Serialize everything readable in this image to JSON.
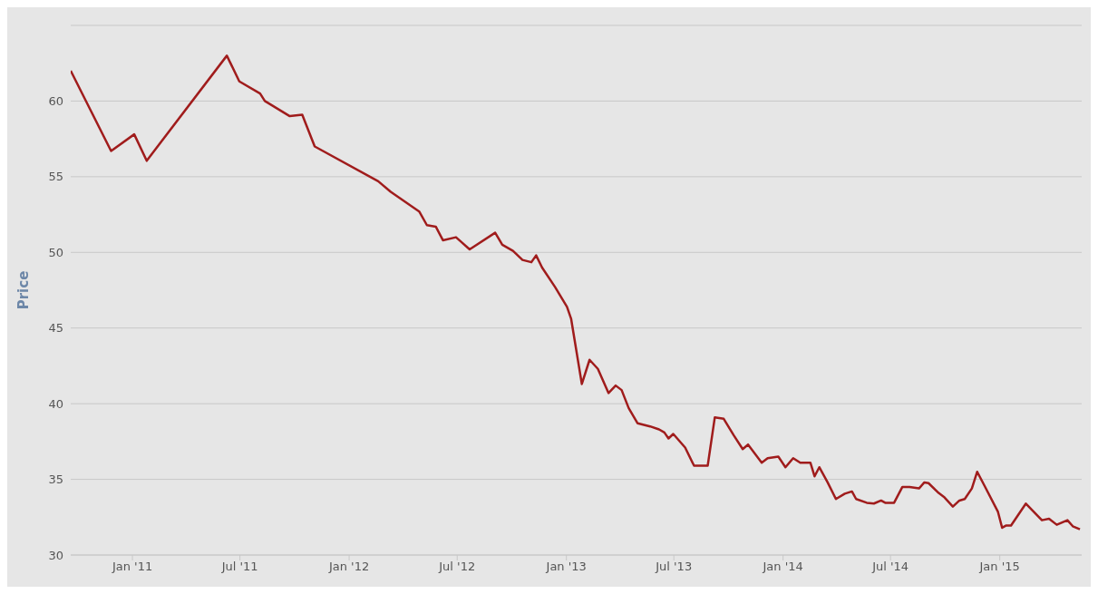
{
  "chart_data": {
    "type": "line",
    "ylabel": "Price",
    "grid": "y",
    "marker": "none",
    "line_style": "solid",
    "xlim": [
      "2010-09-19",
      "2015-05-19"
    ],
    "xticks": [
      {
        "value": "2011-01-01",
        "label": "Jan '11"
      },
      {
        "value": "2011-07-01",
        "label": "Jul '11"
      },
      {
        "value": "2012-01-01",
        "label": "Jan '12"
      },
      {
        "value": "2012-07-01",
        "label": "Jul '12"
      },
      {
        "value": "2013-01-01",
        "label": "Jan '13"
      },
      {
        "value": "2013-07-01",
        "label": "Jul '13"
      },
      {
        "value": "2014-01-01",
        "label": "Jan '14"
      },
      {
        "value": "2014-07-01",
        "label": "Jul '14"
      },
      {
        "value": "2015-01-01",
        "label": "Jan '15"
      }
    ],
    "ylim": [
      30,
      65
    ],
    "yticks": [
      30,
      35,
      40,
      45,
      50,
      55,
      60,
      {
        "value": 65,
        "label": null
      }
    ],
    "x": [
      "2010-09-19",
      "2010-11-26",
      "2011-01-04",
      "2011-01-25",
      "2011-06-09",
      "2011-06-30",
      "2011-08-04",
      "2011-08-12",
      "2011-09-23",
      "2011-10-14",
      "2011-11-04",
      "2012-02-19",
      "2012-03-11",
      "2012-04-28",
      "2012-05-11",
      "2012-05-26",
      "2012-06-07",
      "2012-06-29",
      "2012-07-22",
      "2012-09-03",
      "2012-09-15",
      "2012-10-03",
      "2012-10-19",
      "2012-11-03",
      "2012-11-11",
      "2012-11-21",
      "2012-12-13",
      "2013-01-02",
      "2013-01-09",
      "2013-01-27",
      "2013-02-09",
      "2013-02-23",
      "2013-03-13",
      "2013-03-25",
      "2013-04-04",
      "2013-04-16",
      "2013-05-01",
      "2013-05-22",
      "2013-06-06",
      "2013-06-15",
      "2013-06-22",
      "2013-06-30",
      "2013-07-20",
      "2013-08-04",
      "2013-08-27",
      "2013-09-08",
      "2013-09-23",
      "2013-10-10",
      "2013-10-25",
      "2013-11-03",
      "2013-11-26",
      "2013-12-06",
      "2013-12-24",
      "2014-01-05",
      "2014-01-18",
      "2014-01-30",
      "2014-02-16",
      "2014-02-23",
      "2014-03-03",
      "2014-03-17",
      "2014-03-31",
      "2014-04-15",
      "2014-04-27",
      "2014-05-04",
      "2014-05-22",
      "2014-06-03",
      "2014-06-15",
      "2014-06-22",
      "2014-07-07",
      "2014-07-21",
      "2014-08-02",
      "2014-08-18",
      "2014-08-27",
      "2014-09-03",
      "2014-09-20",
      "2014-09-30",
      "2014-10-14",
      "2014-10-25",
      "2014-11-03",
      "2014-11-15",
      "2014-11-24",
      "2014-12-06",
      "2014-12-29",
      "2015-01-05",
      "2015-01-12",
      "2015-01-20",
      "2015-02-14",
      "2015-03-13",
      "2015-03-25",
      "2015-04-07",
      "2015-04-25",
      "2015-05-04",
      "2015-05-16"
    ],
    "series": [
      {
        "color": "#a01c1c",
        "values": [
          62.0,
          56.7,
          57.8,
          56.05,
          63.0,
          61.3,
          60.5,
          60.0,
          59.0,
          59.1,
          57.0,
          54.7,
          54.0,
          52.7,
          51.8,
          51.7,
          50.8,
          51.0,
          50.2,
          51.3,
          50.5,
          50.1,
          49.5,
          49.35,
          49.8,
          49.0,
          47.7,
          46.4,
          45.6,
          41.3,
          42.9,
          42.3,
          40.7,
          41.2,
          40.9,
          39.7,
          38.7,
          38.5,
          38.3,
          38.1,
          37.7,
          38.0,
          37.1,
          35.9,
          35.9,
          39.1,
          39.0,
          37.9,
          37.0,
          37.3,
          36.1,
          36.4,
          36.5,
          35.8,
          36.4,
          36.1,
          36.1,
          35.2,
          35.8,
          34.8,
          33.7,
          34.05,
          34.2,
          33.7,
          33.45,
          33.4,
          33.6,
          33.45,
          33.45,
          34.5,
          34.5,
          34.4,
          34.8,
          34.75,
          34.1,
          33.8,
          33.2,
          33.6,
          33.7,
          34.4,
          35.5,
          34.6,
          32.85,
          31.8,
          31.95,
          31.95,
          33.4,
          32.3,
          32.4,
          32.0,
          32.3,
          31.9,
          31.7
        ]
      }
    ]
  }
}
